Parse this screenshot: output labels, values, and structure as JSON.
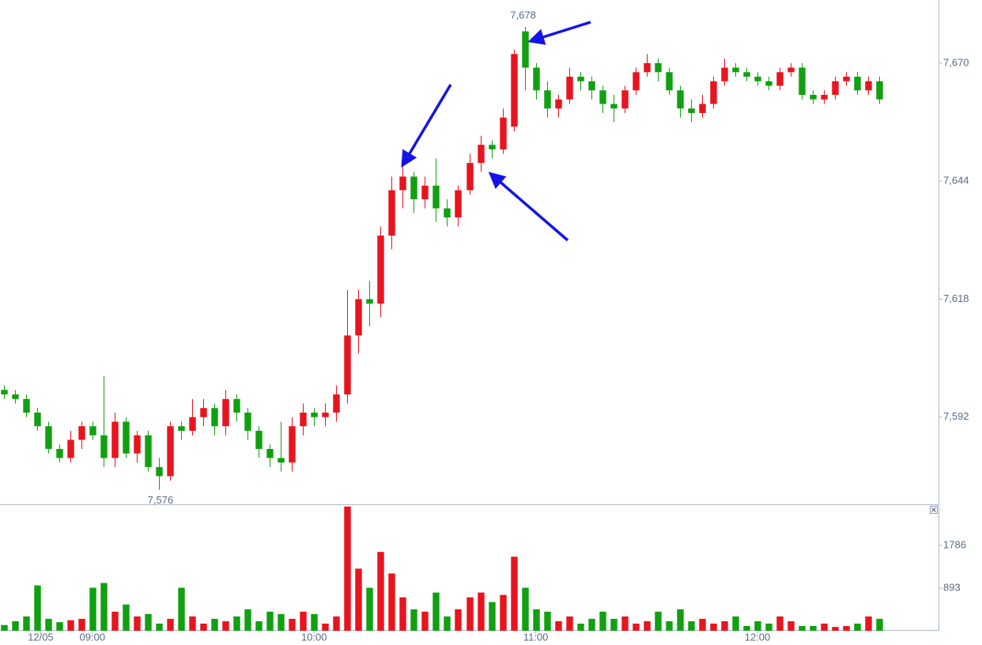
{
  "chart_data": {
    "type": "candlestick",
    "x": [
      516,
      519,
      522,
      525,
      528,
      531,
      534,
      537,
      540,
      543,
      546,
      549,
      552,
      555,
      558,
      561,
      564,
      567,
      570,
      573,
      576,
      579,
      582,
      585,
      588,
      591,
      594,
      597,
      600,
      603,
      606,
      609,
      612,
      615,
      618,
      621,
      624,
      627,
      630,
      633,
      636,
      639,
      642,
      645,
      648,
      651,
      654,
      657,
      660,
      663,
      666,
      669,
      672,
      675,
      678,
      681,
      684,
      687,
      690,
      693,
      696,
      699,
      702,
      705,
      708,
      711,
      714,
      717,
      720,
      723,
      726,
      729,
      732,
      735,
      738,
      741,
      744,
      747,
      750,
      753
    ],
    "open": [
      7598,
      7597,
      7596,
      7593,
      7590,
      7585,
      7583,
      7587,
      7590,
      7588,
      7583,
      7591,
      7584,
      7588,
      7581,
      7579,
      7590,
      7589,
      7592,
      7594,
      7590,
      7596,
      7593,
      7589,
      7585,
      7583,
      7582,
      7590,
      7593,
      7592,
      7593,
      7597,
      7610,
      7618,
      7617,
      7632,
      7642,
      7645,
      7640,
      7643,
      7638,
      7636,
      7642,
      7648,
      7652,
      7651,
      7656,
      7677,
      7669,
      7664,
      7660,
      7662,
      7667,
      7666,
      7664,
      7661,
      7660,
      7664,
      7668,
      7670,
      7668,
      7664,
      7660,
      7659,
      7661,
      7666,
      7669,
      7668,
      7667,
      7666,
      7665,
      7668,
      7669,
      7663,
      7662,
      7663,
      7666,
      7667,
      7664,
      7666
    ],
    "high": [
      7599,
      7598,
      7597,
      7594,
      7591,
      7586,
      7589,
      7591,
      7591,
      7601,
      7593,
      7592,
      7589,
      7589,
      7583,
      7591,
      7591,
      7596,
      7596,
      7595,
      7598,
      7597,
      7594,
      7590,
      7586,
      7591,
      7592,
      7595,
      7594,
      7595,
      7599,
      7620,
      7620,
      7622,
      7634,
      7645,
      7648,
      7646,
      7645,
      7649,
      7640,
      7643,
      7650,
      7654,
      7653,
      7660,
      7673,
      7678,
      7670,
      7666,
      7663,
      7669,
      7668,
      7667,
      7665,
      7663,
      7665,
      7669,
      7672,
      7671,
      7669,
      7665,
      7662,
      7663,
      7667,
      7671,
      7670,
      7669,
      7668,
      7667,
      7669,
      7670,
      7670,
      7664,
      7664,
      7667,
      7668,
      7668,
      7667,
      7667
    ],
    "low": [
      7596,
      7595,
      7592,
      7589,
      7584,
      7582,
      7582,
      7585,
      7587,
      7581,
      7581,
      7583,
      7582,
      7580,
      7576,
      7578,
      7587,
      7588,
      7590,
      7588,
      7588,
      7591,
      7587,
      7583,
      7581,
      7580,
      7580,
      7588,
      7590,
      7590,
      7591,
      7595,
      7606,
      7612,
      7614,
      7629,
      7638,
      7637,
      7638,
      7635,
      7634,
      7634,
      7641,
      7646,
      7649,
      7650,
      7655,
      7664,
      7662,
      7658,
      7658,
      7661,
      7664,
      7662,
      7659,
      7657,
      7659,
      7663,
      7667,
      7666,
      7663,
      7658,
      7657,
      7658,
      7660,
      7665,
      7667,
      7666,
      7665,
      7664,
      7664,
      7667,
      7662,
      7661,
      7661,
      7662,
      7665,
      7663,
      7663,
      7661
    ],
    "close": [
      7597,
      7596,
      7593,
      7590,
      7585,
      7583,
      7587,
      7590,
      7588,
      7583,
      7591,
      7584,
      7588,
      7581,
      7579,
      7590,
      7589,
      7592,
      7594,
      7590,
      7596,
      7593,
      7589,
      7585,
      7583,
      7582,
      7590,
      7593,
      7592,
      7593,
      7597,
      7610,
      7618,
      7617,
      7632,
      7642,
      7645,
      7640,
      7643,
      7638,
      7636,
      7642,
      7648,
      7652,
      7651,
      7658,
      7672,
      7669,
      7664,
      7660,
      7662,
      7667,
      7666,
      7664,
      7661,
      7660,
      7664,
      7668,
      7670,
      7668,
      7664,
      7660,
      7659,
      7661,
      7666,
      7669,
      7668,
      7667,
      7666,
      7665,
      7668,
      7669,
      7663,
      7662,
      7663,
      7666,
      7667,
      7664,
      7666,
      7662
    ],
    "up_color": "#e8141e",
    "down_color": "#10a010",
    "xlim": [
      515,
      769
    ],
    "xticks": [
      {
        "value": 526,
        "label": "12/05"
      },
      {
        "value": 540,
        "label": "09:00"
      },
      {
        "value": 600,
        "label": "10:00"
      },
      {
        "value": 660,
        "label": "11:00"
      },
      {
        "value": 720,
        "label": "12:00"
      }
    ],
    "ylim": [
      7572.8,
      7683.9
    ],
    "yticks": [
      {
        "value": 7592,
        "label": "7,592"
      },
      {
        "value": 7618,
        "label": "7,618"
      },
      {
        "value": 7644,
        "label": "7,644"
      },
      {
        "value": 7670,
        "label": "7,670"
      }
    ],
    "max_label": {
      "value": 7678,
      "label": "7,678"
    },
    "min_label": {
      "value": 7576,
      "label": "7,576"
    },
    "volume": {
      "values": [
        120,
        200,
        300,
        950,
        250,
        180,
        220,
        250,
        900,
        1000,
        400,
        550,
        300,
        350,
        150,
        250,
        900,
        300,
        150,
        250,
        200,
        300,
        450,
        200,
        400,
        350,
        250,
        400,
        350,
        150,
        300,
        2600,
        1300,
        900,
        1650,
        1200,
        700,
        450,
        400,
        800,
        300,
        450,
        700,
        800,
        600,
        750,
        1550,
        900,
        450,
        400,
        200,
        300,
        150,
        250,
        400,
        250,
        300,
        150,
        200,
        400,
        200,
        450,
        200,
        250,
        150,
        200,
        300,
        100,
        200,
        150,
        300,
        200,
        100,
        100,
        150,
        80,
        100,
        150,
        300,
        250
      ],
      "ylim": [
        0,
        2613
      ],
      "yticks": [
        893,
        1786
      ]
    }
  }
}
